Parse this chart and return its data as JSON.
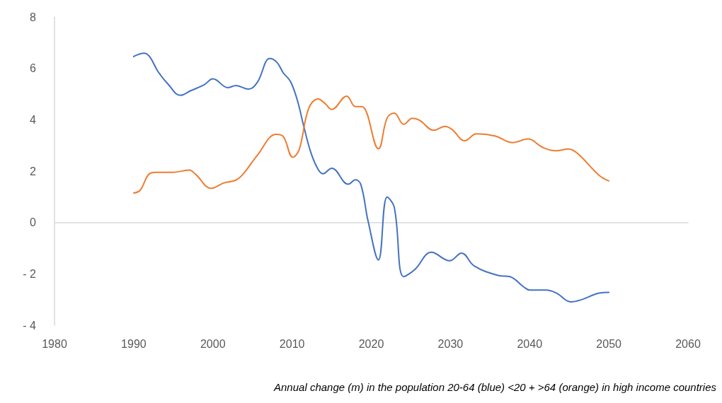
{
  "chart_data": {
    "type": "line",
    "series": [
      {
        "color": "#4472c4",
        "x": [
          1990.0,
          1991.3,
          1992.0,
          1993.1,
          1994.3,
          1995.9,
          1997.2,
          1998.9,
          2000.0,
          2001.9,
          2002.9,
          2004.5,
          2005.6,
          2007.2,
          2008.1,
          2008.9,
          2009.8,
          2010.7,
          2011.5,
          2012.4,
          2013.3,
          2013.9,
          2015.0,
          2017.1,
          2018.0,
          2018.7,
          2019.6,
          2020.9,
          2022.0,
          2022.9,
          2024.1,
          2025.5,
          2027.6,
          2029.9,
          2031.4,
          2033.0,
          2036.0,
          2037.5,
          2039.3,
          2040.0,
          2042.1,
          2043.4,
          2045.2,
          2046.4,
          2048.8,
          2050.0
        ],
        "values": [
          6.46,
          6.59,
          6.46,
          5.86,
          5.4,
          4.95,
          5.13,
          5.36,
          5.59,
          5.25,
          5.33,
          5.19,
          5.45,
          6.38,
          6.23,
          5.82,
          5.49,
          4.72,
          3.71,
          2.7,
          2.06,
          1.9,
          2.11,
          1.49,
          1.66,
          1.46,
          0.05,
          -1.46,
          0.99,
          0.6,
          -2.11,
          -1.83,
          -1.16,
          -1.49,
          -1.19,
          -1.69,
          -2.06,
          -2.11,
          -2.52,
          -2.63,
          -2.63,
          -2.75,
          -3.09,
          -3.02,
          -2.75,
          -2.72
        ]
      },
      {
        "color": "#ed7d31",
        "x": [
          1990.0,
          1990.8,
          1992.0,
          1992.8,
          1994.9,
          1997.0,
          1997.8,
          1999.8,
          2001.3,
          2002.9,
          2003.8,
          2005.6,
          2008.0,
          2008.9,
          2010.1,
          2010.9,
          2012.1,
          2013.3,
          2014.2,
          2015.0,
          2016.9,
          2018.0,
          2018.8,
          2020.9,
          2022.0,
          2022.9,
          2024.1,
          2025.2,
          2026.1,
          2027.9,
          2029.3,
          2030.2,
          2031.8,
          2033.3,
          2035.7,
          2037.8,
          2039.8,
          2041.6,
          2043.3,
          2044.9,
          2046.0,
          2048.8,
          2050.0
        ],
        "values": [
          1.15,
          1.25,
          1.9,
          1.95,
          1.95,
          2.04,
          1.88,
          1.33,
          1.53,
          1.65,
          1.88,
          2.61,
          3.43,
          3.34,
          2.54,
          2.84,
          4.44,
          4.81,
          4.62,
          4.4,
          4.92,
          4.51,
          4.51,
          2.87,
          4.07,
          4.26,
          3.82,
          4.06,
          3.98,
          3.59,
          3.74,
          3.62,
          3.18,
          3.45,
          3.36,
          3.11,
          3.25,
          2.93,
          2.79,
          2.86,
          2.7,
          1.83,
          1.62
        ]
      }
    ],
    "xlim": [
      1980,
      2060
    ],
    "xticks": [
      1980,
      1990,
      2000,
      2010,
      2020,
      2030,
      2040,
      2050,
      2060
    ],
    "ylim": [
      -4,
      8
    ],
    "yticks": [
      {
        "value": -4,
        "label": "- 4"
      },
      {
        "value": -2,
        "label": "- 2"
      },
      0,
      2,
      4,
      6,
      8
    ],
    "marker": "none",
    "line_style": "solid",
    "annotations": [
      "Annual change (m) in the population 20-64 (blue) <20 + >64 (orange) in high income countries"
    ]
  }
}
